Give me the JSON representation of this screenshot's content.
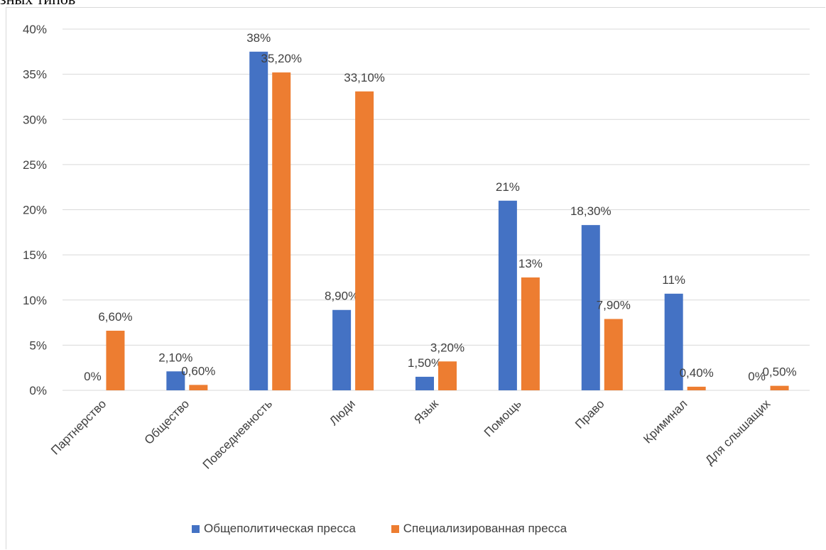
{
  "page": {
    "top_fragment": "зных типов"
  },
  "colors": {
    "blue": "#4472C4",
    "orange": "#ED7D31",
    "grid": "#d9d9d9",
    "text": "#404040"
  },
  "chart_data": {
    "type": "bar",
    "title": "",
    "xlabel": "",
    "ylabel": "",
    "ylim": [
      0,
      40
    ],
    "yticks": [
      "0%",
      "5%",
      "10%",
      "15%",
      "20%",
      "25%",
      "30%",
      "35%",
      "40%"
    ],
    "grid": true,
    "legend_position": "bottom",
    "categories": [
      "Партнерство",
      "Общество",
      "Повседневность",
      "Люди",
      "Язык",
      "Помощь",
      "Право",
      "Криминал",
      "Для слышащих"
    ],
    "series": [
      {
        "name": "Общеполитическая пресса",
        "values": [
          0,
          2.1,
          37.5,
          8.9,
          1.5,
          21,
          18.3,
          10.7,
          0
        ],
        "labels": [
          "0%",
          "2,10%",
          "38%",
          "8,90%",
          "1,50%",
          "21%",
          "18,30%",
          "11%",
          "0%"
        ]
      },
      {
        "name": "Специализированная пресса",
        "values": [
          6.6,
          0.6,
          35.2,
          33.1,
          3.2,
          12.5,
          7.9,
          0.4,
          0.5
        ],
        "labels": [
          "6,60%",
          "0,60%",
          "35,20%",
          "33,10%",
          "3,20%",
          "13%",
          "7,90%",
          "0,40%",
          "0,50%"
        ]
      }
    ]
  }
}
